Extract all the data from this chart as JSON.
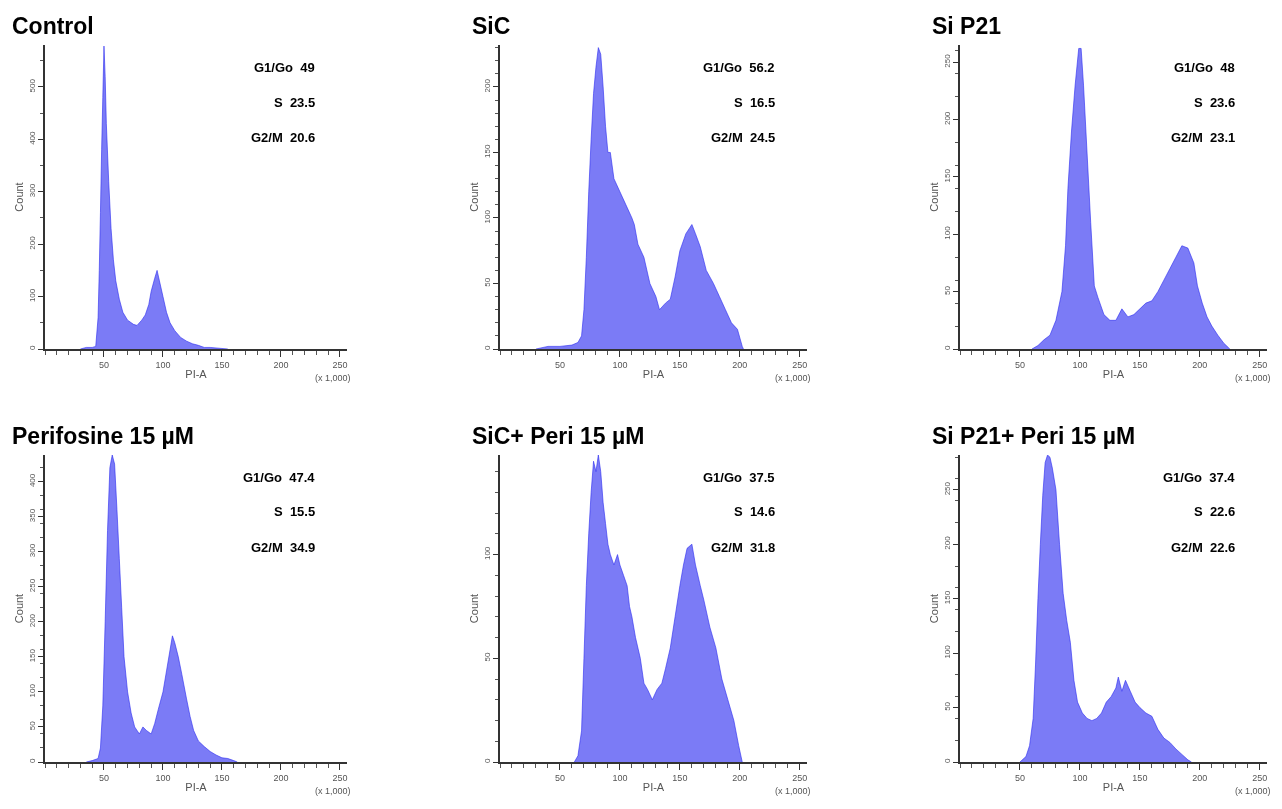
{
  "chart_data": [
    {
      "type": "area",
      "title": "Control",
      "xlabel": "PI-A",
      "ylabel": "Count",
      "color": "#7b7bf6",
      "xlim": [
        0,
        256
      ],
      "xticks": [
        50,
        100,
        150,
        200,
        250
      ],
      "ylim": [
        0,
        580
      ],
      "yticks": [
        0,
        100,
        200,
        300,
        400,
        500
      ],
      "annotations": [
        "G1/Go  49",
        "S  23.5",
        "G2/M  20.6",
        "(x 1,000)"
      ],
      "x": [
        30,
        35,
        40,
        43,
        45,
        46,
        47,
        48,
        49,
        50,
        51,
        52,
        54,
        56,
        58,
        60,
        63,
        66,
        70,
        75,
        78,
        82,
        85,
        88,
        90,
        93,
        95,
        97,
        100,
        103,
        106,
        110,
        115,
        120,
        125,
        130,
        135,
        140,
        145,
        150,
        155
      ],
      "values": [
        0,
        3,
        3,
        5,
        60,
        150,
        260,
        380,
        480,
        578,
        520,
        430,
        320,
        230,
        170,
        130,
        95,
        70,
        55,
        47,
        45,
        55,
        65,
        85,
        110,
        135,
        150,
        130,
        100,
        70,
        50,
        35,
        22,
        15,
        10,
        7,
        3,
        3,
        2,
        1,
        0
      ]
    },
    {
      "type": "area",
      "title": "SiC",
      "xlabel": "PI-A",
      "ylabel": "Count",
      "color": "#7b7bf6",
      "xlim": [
        0,
        256
      ],
      "xticks": [
        50,
        100,
        150,
        200,
        250
      ],
      "ylim": [
        0,
        232
      ],
      "yticks": [
        0,
        50,
        100,
        150,
        200
      ],
      "annotations": [
        "G1/Go  56.2",
        "S  16.5",
        "G2/M  24.5",
        "(x 1,000)"
      ],
      "x": [
        30,
        35,
        40,
        50,
        60,
        65,
        68,
        70,
        72,
        74,
        76,
        78,
        80,
        82,
        84,
        86,
        88,
        90,
        92,
        95,
        100,
        105,
        110,
        112,
        115,
        120,
        125,
        130,
        133,
        138,
        142,
        146,
        150,
        155,
        160,
        163,
        167,
        172,
        178,
        183,
        188,
        193,
        198,
        202,
        203
      ],
      "values": [
        0,
        1,
        2,
        2,
        3,
        5,
        10,
        30,
        70,
        120,
        160,
        195,
        215,
        230,
        225,
        200,
        170,
        150,
        150,
        130,
        120,
        110,
        100,
        95,
        80,
        70,
        50,
        40,
        30,
        35,
        38,
        55,
        75,
        88,
        95,
        88,
        78,
        60,
        50,
        40,
        30,
        20,
        15,
        2,
        0
      ]
    },
    {
      "type": "area",
      "title": "Si P21",
      "xlabel": "PI-A",
      "ylabel": "Count",
      "color": "#7b7bf6",
      "xlim": [
        0,
        256
      ],
      "xticks": [
        50,
        100,
        150,
        200,
        250
      ],
      "ylim": [
        0,
        265
      ],
      "yticks": [
        0,
        50,
        100,
        150,
        200,
        250
      ],
      "annotations": [
        "G1/Go  48",
        "S  23.6",
        "G2/M  23.1",
        "(x 1,000)"
      ],
      "x": [
        60,
        65,
        70,
        75,
        80,
        85,
        88,
        90,
        93,
        96,
        99,
        101,
        103,
        106,
        109,
        112,
        115,
        120,
        125,
        130,
        135,
        140,
        145,
        150,
        155,
        160,
        165,
        170,
        175,
        180,
        185,
        190,
        195,
        198,
        202,
        206,
        210,
        215,
        220,
        224,
        225
      ],
      "values": [
        0,
        3,
        8,
        12,
        25,
        50,
        90,
        140,
        190,
        230,
        262,
        262,
        230,
        170,
        110,
        55,
        45,
        30,
        25,
        25,
        35,
        28,
        30,
        35,
        40,
        42,
        50,
        60,
        70,
        80,
        90,
        88,
        75,
        55,
        40,
        28,
        20,
        12,
        5,
        1,
        0
      ]
    },
    {
      "type": "area",
      "title": "Perifosine 15 µM",
      "xlabel": "PI-A",
      "ylabel": "Count",
      "color": "#7b7bf6",
      "xlim": [
        0,
        256
      ],
      "xticks": [
        50,
        100,
        150,
        200,
        250
      ],
      "ylim": [
        0,
        438
      ],
      "yticks": [
        0,
        50,
        100,
        150,
        200,
        250,
        300,
        350,
        400
      ],
      "annotations": [
        "G1/Go  47.4",
        "S  15.5",
        "G2/M  34.9",
        "(x 1,000)"
      ],
      "x": [
        35,
        40,
        45,
        47,
        49,
        51,
        53,
        55,
        57,
        59,
        61,
        63,
        65,
        67,
        70,
        73,
        76,
        80,
        83,
        86,
        90,
        93,
        96,
        100,
        103,
        106,
        108,
        110,
        113,
        116,
        120,
        123,
        126,
        130,
        135,
        140,
        145,
        150,
        155,
        160,
        163
      ],
      "values": [
        0,
        2,
        5,
        20,
        80,
        200,
        330,
        420,
        438,
        425,
        360,
        290,
        220,
        150,
        100,
        70,
        50,
        40,
        50,
        45,
        40,
        55,
        75,
        100,
        130,
        160,
        180,
        170,
        150,
        125,
        90,
        65,
        45,
        30,
        22,
        15,
        10,
        6,
        5,
        2,
        0
      ]
    },
    {
      "type": "area",
      "title": "SiC+ Peri 15 µM",
      "xlabel": "PI-A",
      "ylabel": "Count",
      "color": "#7b7bf6",
      "xlim": [
        0,
        256
      ],
      "xticks": [
        50,
        100,
        150,
        200,
        250
      ],
      "ylim": [
        0,
        148
      ],
      "yticks": [
        0,
        50,
        100
      ],
      "annotations": [
        "G1/Go  37.5",
        "S  14.6",
        "G2/M  31.8",
        "(x 1,000)"
      ],
      "x": [
        62,
        65,
        68,
        70,
        72,
        74,
        76,
        78,
        80,
        82,
        84,
        86,
        88,
        90,
        92,
        95,
        98,
        100,
        103,
        106,
        108,
        110,
        113,
        117,
        120,
        123,
        127,
        131,
        135,
        138,
        142,
        146,
        150,
        153,
        156,
        160,
        163,
        167,
        170,
        175,
        180,
        185,
        190,
        195,
        199,
        202
      ],
      "values": [
        0,
        3,
        15,
        50,
        85,
        110,
        130,
        145,
        140,
        148,
        140,
        125,
        115,
        105,
        100,
        95,
        100,
        95,
        90,
        85,
        75,
        70,
        60,
        50,
        38,
        35,
        30,
        35,
        38,
        45,
        55,
        70,
        85,
        95,
        103,
        105,
        95,
        85,
        78,
        65,
        55,
        40,
        30,
        20,
        8,
        0
      ]
    },
    {
      "type": "area",
      "title": "Si P21+ Peri 15 µM",
      "xlabel": "PI-A",
      "ylabel": "Count",
      "color": "#7b7bf6",
      "xlim": [
        0,
        256
      ],
      "xticks": [
        50,
        100,
        150,
        200,
        250
      ],
      "ylim": [
        0,
        282
      ],
      "yticks": [
        0,
        50,
        100,
        150,
        200,
        250
      ],
      "annotations": [
        "G1/Go  37.4",
        "S  22.6",
        "G2/M  22.6",
        "(x 1,000)"
      ],
      "x": [
        50,
        55,
        58,
        61,
        63,
        65,
        67,
        69,
        71,
        73,
        75,
        77,
        80,
        83,
        86,
        89,
        92,
        95,
        98,
        102,
        106,
        110,
        114,
        118,
        122,
        126,
        130,
        132,
        135,
        138,
        142,
        146,
        150,
        155,
        160,
        165,
        170,
        175,
        180,
        185,
        190,
        193
      ],
      "values": [
        0,
        5,
        15,
        40,
        90,
        150,
        200,
        245,
        275,
        282,
        280,
        270,
        250,
        200,
        155,
        130,
        110,
        75,
        55,
        45,
        40,
        38,
        40,
        45,
        55,
        60,
        68,
        78,
        65,
        75,
        65,
        55,
        50,
        45,
        42,
        30,
        22,
        18,
        12,
        7,
        2,
        0
      ]
    }
  ]
}
